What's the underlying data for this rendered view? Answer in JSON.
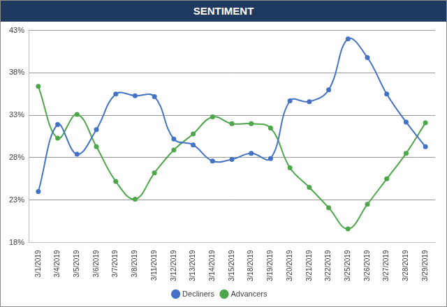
{
  "chart_data": {
    "type": "line",
    "title": "SENTIMENT",
    "categories": [
      "3/1/2019",
      "3/4/2019",
      "3/5/2019",
      "3/6/2019",
      "3/7/2019",
      "3/8/2019",
      "3/11/2019",
      "3/12/2019",
      "3/13/2019",
      "3/14/2019",
      "3/15/2019",
      "3/18/2019",
      "3/19/2019",
      "3/20/2019",
      "3/21/2019",
      "3/22/2019",
      "3/25/2019",
      "3/26/2019",
      "3/27/2019",
      "3/28/2019",
      "3/29/2019"
    ],
    "series": [
      {
        "name": "Decliners",
        "color": "#4472c4",
        "marker": "circle",
        "values": [
          24.0,
          31.9,
          28.4,
          31.3,
          35.5,
          35.3,
          35.2,
          30.2,
          29.5,
          27.6,
          27.8,
          28.5,
          27.9,
          34.7,
          34.6,
          36.0,
          42.0,
          39.8,
          35.5,
          32.2,
          29.3
        ]
      },
      {
        "name": "Advancers",
        "color": "#4ea64a",
        "marker": "circle",
        "values": [
          36.4,
          30.3,
          33.1,
          29.3,
          25.2,
          23.1,
          26.2,
          28.9,
          30.8,
          32.8,
          32.0,
          32.0,
          31.5,
          26.8,
          24.5,
          22.1,
          19.6,
          22.5,
          25.5,
          28.5,
          32.1
        ]
      }
    ],
    "ylim": [
      18,
      43
    ],
    "yticks": [
      {
        "value": 18,
        "label": "18%"
      },
      {
        "value": 23,
        "label": "23%"
      },
      {
        "value": 28,
        "label": "28%"
      },
      {
        "value": 33,
        "label": "33%"
      },
      {
        "value": 38,
        "label": "38%"
      },
      {
        "value": 43,
        "label": "43%"
      }
    ],
    "grid": true,
    "legend": "bottom"
  }
}
